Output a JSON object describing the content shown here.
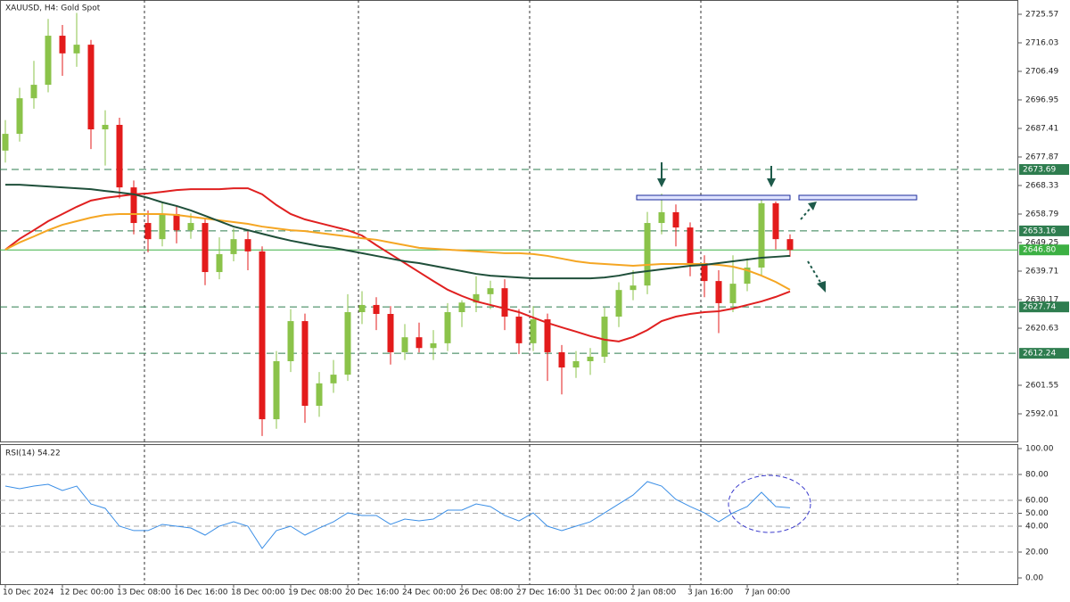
{
  "chart_data": [
    {
      "type": "candlestick",
      "title": "XAUUSD, H4:  Gold Spot",
      "categories": [
        "10 Dec 2024",
        null,
        null,
        null,
        "12 Dec 00:00",
        null,
        null,
        null,
        "13 Dec 08:00",
        null,
        null,
        null,
        "16 Dec 16:00",
        null,
        null,
        null,
        "18 Dec 00:00",
        null,
        null,
        null,
        "19 Dec 08:00",
        null,
        null,
        null,
        "20 Dec 16:00",
        null,
        null,
        null,
        "24 Dec 00:00",
        null,
        null,
        null,
        "26 Dec 08:00",
        null,
        null,
        null,
        "27 Dec 16:00",
        null,
        null,
        null,
        "31 Dec 00:00",
        null,
        null,
        null,
        "2 Jan 08:00",
        null,
        null,
        null,
        "3 Jan 16:00",
        null,
        null,
        null,
        "7 Jan 00:00",
        null,
        null,
        null
      ],
      "open": [
        2680.0,
        2685.6,
        2697.5,
        2702.0,
        2718.4,
        2712.5,
        2715.4,
        2687.1,
        2688.6,
        2667.7,
        2655.8,
        2650.4,
        2658.8,
        2653.4,
        2655.8,
        2639.4,
        2645.4,
        2650.4,
        2646.3,
        2590.2,
        2609.6,
        2623.0,
        2594.7,
        2602.2,
        2605.1,
        2626.0,
        2628.4,
        2625.4,
        2612.6,
        2617.6,
        2614.0,
        2615.6,
        2626.0,
        2629.2,
        2632.0,
        2634.0,
        2624.5,
        2615.6,
        2623.6,
        2612.6,
        2607.5,
        2609.6,
        2611.1,
        2624.5,
        2633.4,
        2634.9,
        2655.8,
        2659.4,
        2654.3,
        2642.4,
        2636.4,
        2629.0,
        2635.5,
        2640.9,
        2662.4,
        2650.4
      ],
      "high": [
        2690.2,
        2701.0,
        2710.0,
        2724.0,
        2722.0,
        2726.0,
        2717.0,
        2693.5,
        2691.0,
        2670.0,
        2660.0,
        2663.0,
        2661.5,
        2659.0,
        2657.5,
        2651.0,
        2654.0,
        2653.0,
        2648.0,
        2613.0,
        2627.0,
        2625.5,
        2606.0,
        2610.0,
        2632.0,
        2633.0,
        2631.0,
        2628.0,
        2622.0,
        2622.5,
        2620.0,
        2629.0,
        2630.0,
        2638.0,
        2636.5,
        2637.0,
        2627.0,
        2628.0,
        2625.5,
        2615.0,
        2613.0,
        2614.0,
        2627.5,
        2636.0,
        2640.0,
        2659.5,
        2665.6,
        2662.0,
        2656.0,
        2645.0,
        2640.0,
        2645.0,
        2644.0,
        2664.5,
        2663.0,
        2652.0
      ],
      "low": [
        2676.0,
        2683.0,
        2694.0,
        2699.5,
        2705.0,
        2708.0,
        2680.5,
        2675.0,
        2664.0,
        2652.0,
        2646.0,
        2648.0,
        2649.0,
        2650.5,
        2635.0,
        2637.0,
        2643.0,
        2640.0,
        2584.6,
        2587.0,
        2606.0,
        2589.0,
        2591.0,
        2599.0,
        2603.0,
        2622.0,
        2620.0,
        2608.5,
        2610.0,
        2612.5,
        2610.0,
        2613.0,
        2621.0,
        2626.0,
        2627.0,
        2620.0,
        2612.0,
        2613.0,
        2603.0,
        2598.5,
        2604.0,
        2605.0,
        2609.0,
        2621.0,
        2630.0,
        2632.0,
        2652.0,
        2648.0,
        2638.0,
        2631.0,
        2619.0,
        2626.0,
        2633.0,
        2638.0,
        2647.0,
        2644.5
      ],
      "close": [
        2685.6,
        2697.5,
        2702.0,
        2718.4,
        2712.5,
        2715.4,
        2687.1,
        2688.6,
        2667.7,
        2655.8,
        2650.4,
        2658.8,
        2653.4,
        2655.8,
        2639.4,
        2645.4,
        2650.4,
        2646.3,
        2590.2,
        2609.6,
        2623.0,
        2594.7,
        2602.2,
        2605.1,
        2626.0,
        2628.4,
        2625.4,
        2612.6,
        2617.6,
        2614.0,
        2615.6,
        2626.0,
        2629.2,
        2632.0,
        2634.0,
        2624.5,
        2615.6,
        2623.6,
        2612.6,
        2607.5,
        2609.6,
        2611.1,
        2624.5,
        2633.4,
        2634.9,
        2655.8,
        2659.4,
        2654.3,
        2642.4,
        2636.4,
        2629.0,
        2635.5,
        2640.9,
        2662.4,
        2650.4,
        2646.8
      ],
      "up_color": "#8bc34a",
      "down_color": "#e31b1b",
      "lines": [
        {
          "color": "#e02020",
          "values": [
            2646.9,
            2650.5,
            2653.4,
            2656.4,
            2658.8,
            2661.2,
            2663.3,
            2664.2,
            2664.8,
            2665.4,
            2665.7,
            2666.2,
            2666.8,
            2667.1,
            2667.1,
            2667.1,
            2667.4,
            2667.4,
            2665.4,
            2661.8,
            2658.8,
            2657.0,
            2655.8,
            2654.6,
            2653.4,
            2651.6,
            2648.4,
            2645.4,
            2642.4,
            2639.4,
            2636.4,
            2633.5,
            2631.4,
            2629.6,
            2628.4,
            2627.2,
            2626.0,
            2624.2,
            2622.4,
            2620.9,
            2619.5,
            2618.0,
            2616.8,
            2616.2,
            2617.7,
            2620.0,
            2623.0,
            2624.5,
            2625.4,
            2626.0,
            2626.3,
            2627.2,
            2628.4,
            2629.6,
            2631.1,
            2632.9
          ]
        },
        {
          "color": "#f5a623",
          "values": [
            2646.9,
            2649.3,
            2651.3,
            2653.4,
            2655.2,
            2656.4,
            2657.6,
            2658.5,
            2658.8,
            2658.8,
            2658.8,
            2658.8,
            2658.5,
            2657.9,
            2657.3,
            2656.7,
            2656.1,
            2655.5,
            2654.6,
            2654.0,
            2653.4,
            2653.1,
            2652.5,
            2651.9,
            2651.3,
            2650.7,
            2650.2,
            2649.3,
            2648.4,
            2647.5,
            2647.2,
            2646.9,
            2646.6,
            2646.3,
            2646.0,
            2645.7,
            2645.7,
            2645.4,
            2644.8,
            2643.9,
            2643.0,
            2642.4,
            2642.1,
            2641.8,
            2641.5,
            2641.8,
            2642.1,
            2642.1,
            2642.1,
            2642.1,
            2641.8,
            2641.2,
            2640.0,
            2638.2,
            2636.1,
            2633.5
          ]
        },
        {
          "color": "#1f4f3a",
          "values": [
            2668.6,
            2668.6,
            2668.3,
            2668.0,
            2667.7,
            2667.4,
            2667.1,
            2666.5,
            2666.0,
            2665.4,
            2664.2,
            2662.7,
            2661.5,
            2660.0,
            2658.2,
            2656.4,
            2654.6,
            2653.4,
            2652.2,
            2651.0,
            2649.9,
            2649.0,
            2648.1,
            2647.5,
            2646.6,
            2645.7,
            2644.8,
            2643.9,
            2643.0,
            2642.4,
            2641.5,
            2640.6,
            2639.7,
            2638.8,
            2638.2,
            2637.9,
            2637.6,
            2637.3,
            2637.3,
            2637.3,
            2637.3,
            2637.3,
            2637.6,
            2638.2,
            2639.1,
            2639.7,
            2640.3,
            2640.9,
            2641.5,
            2641.8,
            2642.4,
            2643.0,
            2643.6,
            2644.2,
            2644.5,
            2644.8
          ]
        }
      ],
      "ylim": [
        2582.77,
        2730.34
      ],
      "yticks": [
        2725.57,
        2716.03,
        2706.49,
        2696.95,
        2687.41,
        2677.87,
        2668.33,
        2658.79,
        2649.25,
        2639.71,
        2630.17,
        2620.63,
        2601.55,
        2592.01
      ],
      "levels": [
        2673.69,
        2653.16,
        {
          "value": 2646.8,
          "label": "2646.80"
        },
        2627.74,
        2612.24
      ],
      "level_color": "#2e7d4f",
      "current_color": "#3cb043"
    },
    {
      "type": "line",
      "title": "RSI(14) 54.22",
      "color": "#3a8ee6",
      "values": [
        71.0,
        69.0,
        71.0,
        72.4,
        67.6,
        71.0,
        57.2,
        53.8,
        40.0,
        36.6,
        36.6,
        41.4,
        40.0,
        38.6,
        33.1,
        40.0,
        43.4,
        40.0,
        22.8,
        36.6,
        40.0,
        33.1,
        38.6,
        43.4,
        50.3,
        48.3,
        48.3,
        41.4,
        45.5,
        44.1,
        45.5,
        52.4,
        52.4,
        57.2,
        55.2,
        48.3,
        44.1,
        50.3,
        40.0,
        36.6,
        40.0,
        43.4,
        50.3,
        57.2,
        64.1,
        74.5,
        71.0,
        60.7,
        55.2,
        50.3,
        43.4,
        50.3,
        55.2,
        66.2,
        55.2,
        54.22
      ],
      "ylim": [
        0,
        100
      ],
      "yticks": [
        {
          "value": 100,
          "label": "100.00"
        },
        {
          "value": 80,
          "label": "80.00"
        },
        {
          "value": 60,
          "label": "60.00"
        },
        {
          "value": 50,
          "label": "50.00"
        },
        {
          "value": 40,
          "label": "40.00"
        },
        {
          "value": 20,
          "label": "20.00"
        },
        {
          "value": 0,
          "label": "0.00"
        }
      ],
      "grid": true
    }
  ]
}
